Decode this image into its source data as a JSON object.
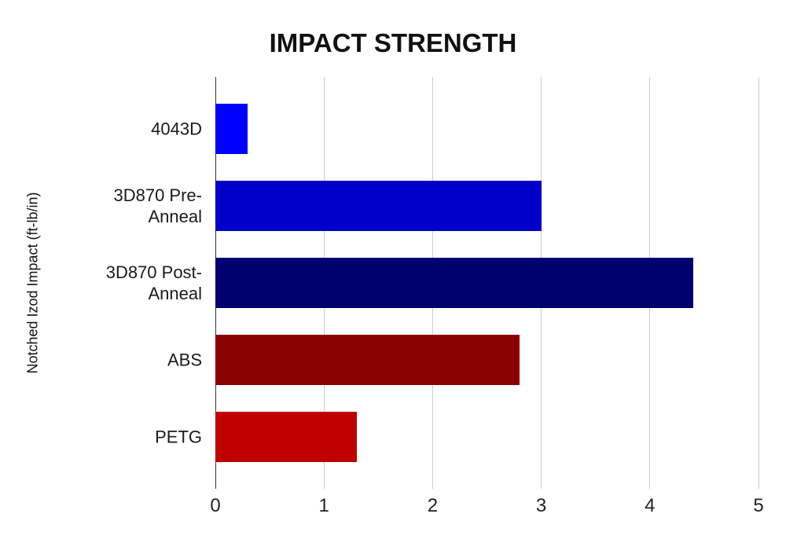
{
  "page": {
    "background": "#ffffff"
  },
  "chart_data": {
    "type": "bar",
    "orientation": "horizontal",
    "title": "IMPACT STRENGTH",
    "xlabel": "",
    "ylabel": "Notched Izod Impact (ft-lb/in)",
    "categories": [
      "4043D",
      "3D870 Pre-Anneal",
      "3D870 Post-Anneal",
      "ABS",
      "PETG"
    ],
    "values": [
      0.3,
      3.0,
      4.4,
      2.8,
      1.3
    ],
    "bar_colors": [
      "#0000ff",
      "#0000c8",
      "#000070",
      "#8b0000",
      "#c00000"
    ],
    "xlim": [
      0,
      5
    ],
    "x_ticks": [
      "0",
      "1",
      "2",
      "3",
      "4",
      "5"
    ],
    "grid": true,
    "legend": "none"
  },
  "colors": {
    "gridline": "#cccccc",
    "axis_line": "#333333",
    "title_text": "#111111",
    "label_text": "#1a1a1a",
    "tick_text": "#222222"
  }
}
